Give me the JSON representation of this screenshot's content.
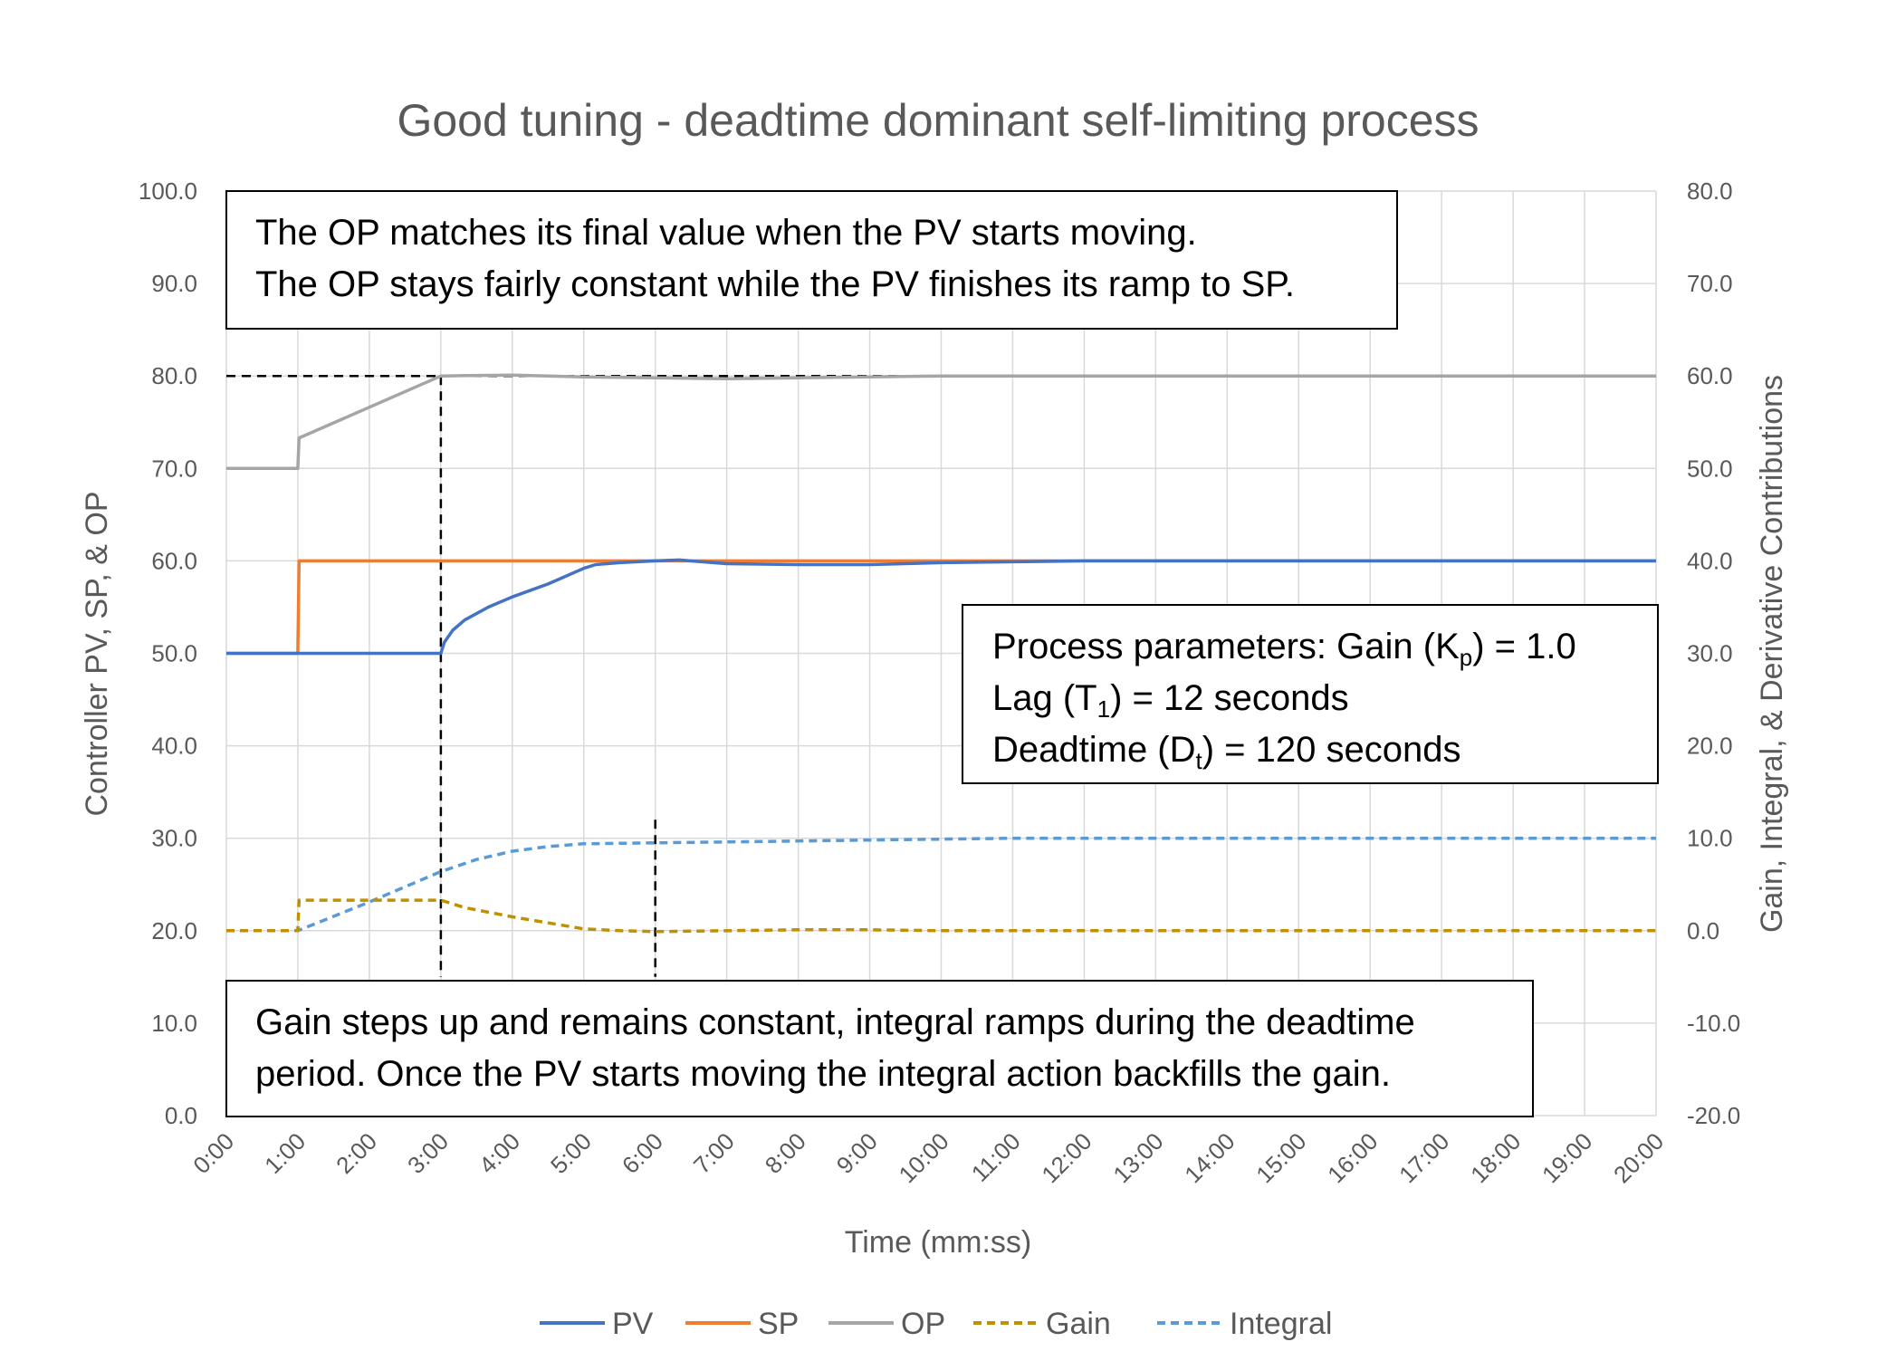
{
  "chart_data": {
    "type": "line",
    "title": "Good tuning - deadtime dominant self-limiting process",
    "xlabel": "Time (mm:ss)",
    "ylabel_left": "Controller PV, SP, & OP",
    "ylabel_right": "Gain, Integral, & Derivative Contributions",
    "x_ticks": [
      "0:00",
      "1:00",
      "2:00",
      "3:00",
      "4:00",
      "5:00",
      "6:00",
      "7:00",
      "8:00",
      "9:00",
      "10:00",
      "11:00",
      "12:00",
      "13:00",
      "14:00",
      "15:00",
      "16:00",
      "17:00",
      "18:00",
      "19:00",
      "20:00"
    ],
    "xlim_seconds": [
      0,
      1200
    ],
    "ylim_left": [
      0,
      100
    ],
    "ylim_right": [
      -20,
      80
    ],
    "y_ticks_left": [
      "0.0",
      "10.0",
      "20.0",
      "30.0",
      "40.0",
      "50.0",
      "60.0",
      "70.0",
      "80.0",
      "90.0",
      "100.0"
    ],
    "y_ticks_right": [
      "-20.0",
      "-10.0",
      "0.0",
      "10.0",
      "20.0",
      "30.0",
      "40.0",
      "50.0",
      "60.0",
      "70.0",
      "80.0"
    ],
    "grid": true,
    "legend_position": "bottom",
    "series": [
      {
        "name": "PV",
        "axis": "left",
        "color": "#4472C4",
        "dash": "solid",
        "points": [
          [
            0,
            50
          ],
          [
            60,
            50
          ],
          [
            180,
            50
          ],
          [
            183,
            51.2
          ],
          [
            190,
            52.5
          ],
          [
            200,
            53.6
          ],
          [
            220,
            55
          ],
          [
            240,
            56.1
          ],
          [
            270,
            57.5
          ],
          [
            300,
            59.2
          ],
          [
            310,
            59.6
          ],
          [
            330,
            59.8
          ],
          [
            360,
            60
          ],
          [
            380,
            60.1
          ],
          [
            420,
            59.7
          ],
          [
            480,
            59.6
          ],
          [
            540,
            59.6
          ],
          [
            600,
            59.8
          ],
          [
            660,
            59.9
          ],
          [
            720,
            60
          ],
          [
            1200,
            60
          ]
        ]
      },
      {
        "name": "SP",
        "axis": "left",
        "color": "#ED7D31",
        "dash": "solid",
        "points": [
          [
            0,
            50
          ],
          [
            60,
            50
          ],
          [
            61,
            60
          ],
          [
            1200,
            60
          ]
        ]
      },
      {
        "name": "OP",
        "axis": "left",
        "color": "#A5A5A5",
        "dash": "solid",
        "points": [
          [
            0,
            70
          ],
          [
            60,
            70
          ],
          [
            61,
            73.3
          ],
          [
            70,
            73.8
          ],
          [
            180,
            80
          ],
          [
            240,
            80.1
          ],
          [
            300,
            79.9
          ],
          [
            420,
            79.7
          ],
          [
            480,
            79.8
          ],
          [
            600,
            80
          ],
          [
            1200,
            80
          ]
        ]
      },
      {
        "name": "Gain",
        "axis": "right",
        "color": "#BF9000",
        "dash": "dashed",
        "points": [
          [
            0,
            0
          ],
          [
            60,
            0
          ],
          [
            61,
            3.3
          ],
          [
            180,
            3.3
          ],
          [
            200,
            2.5
          ],
          [
            240,
            1.5
          ],
          [
            300,
            0.2
          ],
          [
            330,
            0
          ],
          [
            360,
            -0.1
          ],
          [
            480,
            0.1
          ],
          [
            540,
            0.1
          ],
          [
            600,
            0
          ],
          [
            1200,
            0
          ]
        ]
      },
      {
        "name": "Integral",
        "axis": "right",
        "color": "#5B9BD5",
        "dash": "dashed",
        "points": [
          [
            0,
            0
          ],
          [
            60,
            0
          ],
          [
            120,
            3.1
          ],
          [
            180,
            6.4
          ],
          [
            210,
            7.7
          ],
          [
            240,
            8.6
          ],
          [
            270,
            9.1
          ],
          [
            300,
            9.4
          ],
          [
            360,
            9.5
          ],
          [
            420,
            9.6
          ],
          [
            540,
            9.8
          ],
          [
            660,
            10
          ],
          [
            1200,
            10
          ]
        ]
      }
    ],
    "reference_lines": [
      {
        "axis": "left",
        "color": "#000000",
        "dash": "dashed",
        "points": [
          [
            0,
            80
          ],
          [
            850,
            80
          ]
        ]
      },
      {
        "axis": "left",
        "color": "#000000",
        "dash": "dashed",
        "points": [
          [
            180,
            80
          ],
          [
            180,
            15
          ]
        ]
      },
      {
        "axis": "left",
        "color": "#000000",
        "dash": "dashed",
        "points": [
          [
            360,
            32
          ],
          [
            360,
            15
          ]
        ]
      }
    ]
  },
  "annotations": {
    "top_box": {
      "line1": "The OP matches its final value when the PV starts moving.",
      "line2": "The OP stays fairly constant while the PV finishes its ramp to SP."
    },
    "params_box": {
      "line1_pre": "Process parameters:  Gain (K",
      "line1_sub": "p",
      "line1_post": ") = 1.0",
      "line2_pre": "Lag (T",
      "line2_sub": "1",
      "line2_post": ") = 12 seconds",
      "line3_pre": "Deadtime (D",
      "line3_sub": "t",
      "line3_post": ") = 120 seconds"
    },
    "bottom_box": {
      "line1": "Gain steps up and remains constant, integral ramps during the deadtime",
      "line2": "period. Once the PV starts moving the integral action backfills the gain."
    }
  }
}
